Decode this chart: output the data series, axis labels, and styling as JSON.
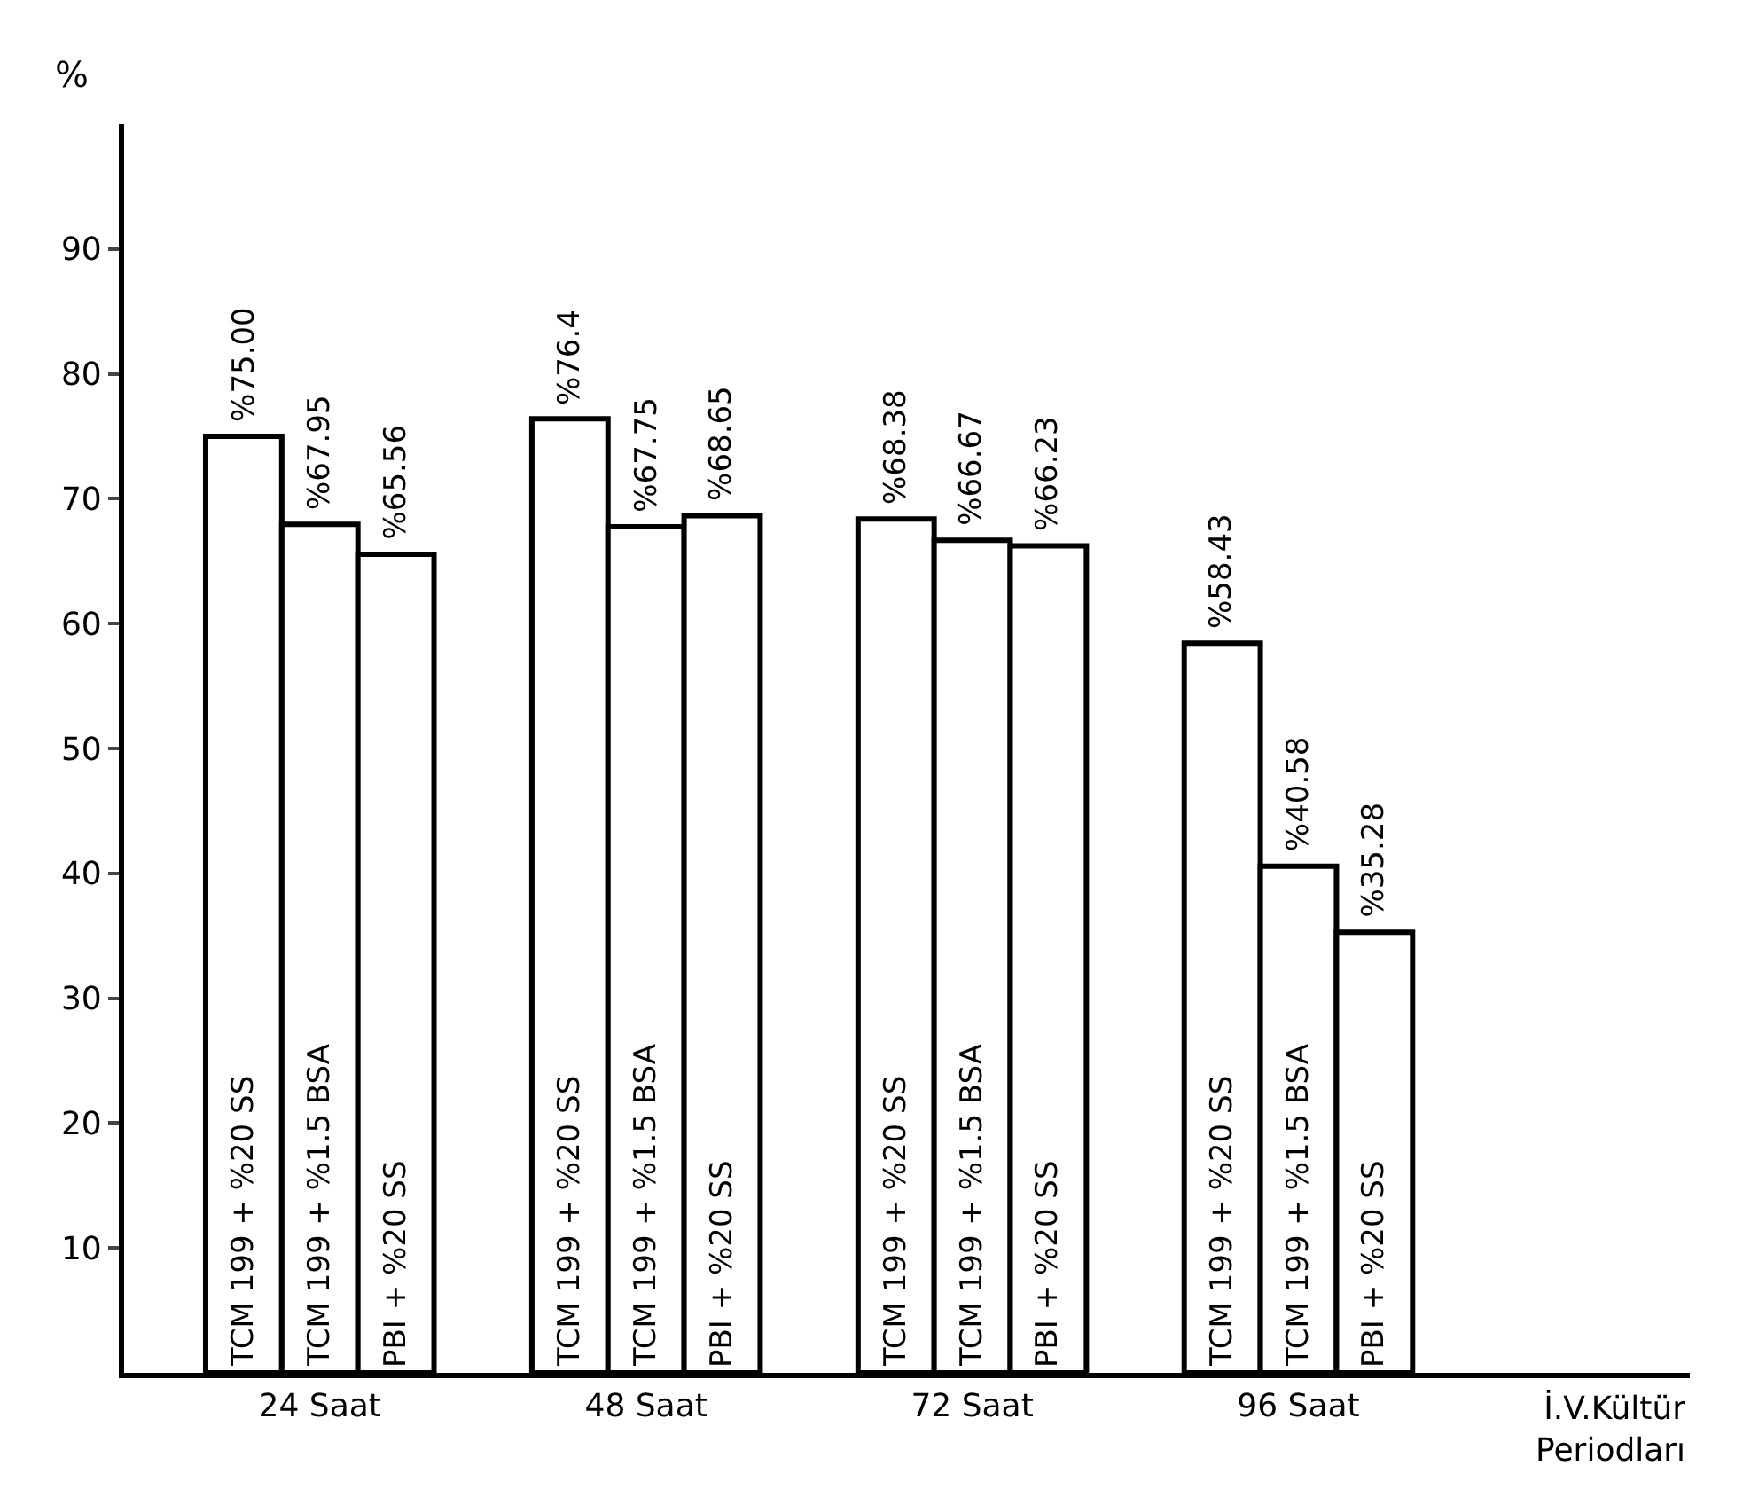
{
  "chart_data": {
    "type": "bar",
    "xlabel": "İ.V.Kültür Periodları",
    "ylabel": "%",
    "categories": [
      "24 Saat",
      "48 Saat",
      "72 Saat",
      "96 Saat"
    ],
    "series": [
      {
        "name": "TCM 199 + %20 SS",
        "color": "#ffffff",
        "values": [
          75.0,
          76.4,
          68.38,
          58.43
        ],
        "value_labels": [
          "%75.00",
          "%76.4",
          "%68.38",
          "%58.43"
        ]
      },
      {
        "name": "TCM 199 + %1.5 BSA",
        "color": "#ffffff",
        "values": [
          67.95,
          67.75,
          66.67,
          40.58
        ],
        "value_labels": [
          "%67.95",
          "%67.75",
          "%66.67",
          "%40.58"
        ]
      },
      {
        "name": "PBI + %20 SS",
        "color": "#ffffff",
        "values": [
          65.56,
          68.65,
          66.23,
          35.28
        ],
        "value_labels": [
          "%65.56",
          "%68.65",
          "%66.23",
          "%35.28"
        ]
      }
    ],
    "ylim": [
      0,
      100
    ],
    "yticks": [
      10,
      20,
      30,
      40,
      50,
      60,
      70,
      80,
      90
    ],
    "grid": false,
    "legend": false
  }
}
